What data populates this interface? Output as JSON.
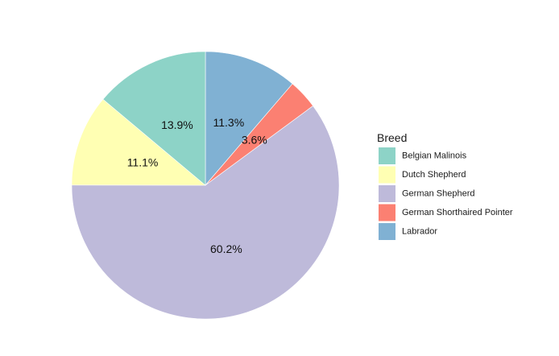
{
  "chart_data": {
    "type": "pie",
    "title": "",
    "legend": {
      "title": "Breed",
      "placement": "right"
    },
    "slices": [
      {
        "name": "Labrador",
        "label": "11.3%",
        "value": 11.3,
        "color": "#80B1D3"
      },
      {
        "name": "German Shorthaired Pointer",
        "label": "3.6%",
        "value": 3.6,
        "color": "#FB8072"
      },
      {
        "name": "German Shepherd",
        "label": "60.2%",
        "value": 60.2,
        "color": "#BEBADA"
      },
      {
        "name": "Dutch Shepherd",
        "label": "11.1%",
        "value": 11.1,
        "color": "#FFFFB3"
      },
      {
        "name": "Belgian Malinois",
        "label": "13.9%",
        "value": 13.9,
        "color": "#8DD3C7"
      }
    ],
    "legend_order": [
      "Belgian Malinois",
      "Dutch Shepherd",
      "German Shepherd",
      "German Shorthaired Pointer",
      "Labrador"
    ],
    "start": "12 o'clock",
    "direction": "clockwise"
  }
}
